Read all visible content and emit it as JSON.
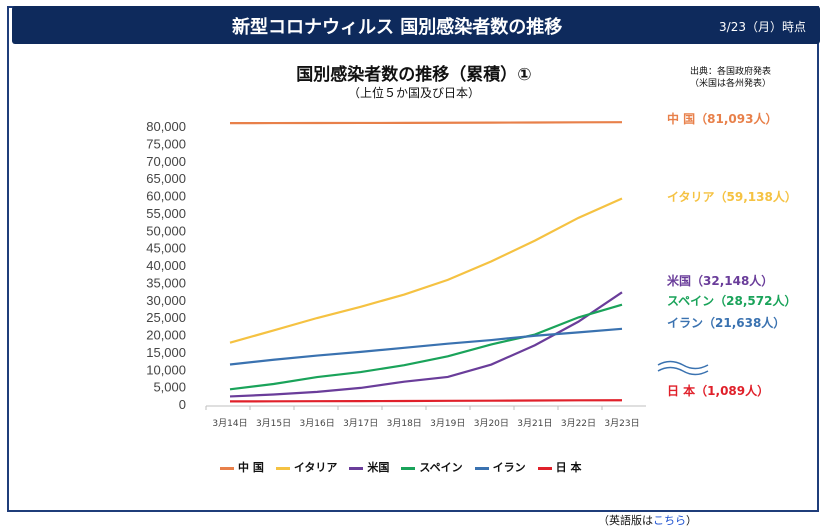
{
  "header": {
    "title": "新型コロナウィルス 国別感染者数の推移",
    "date": "3/23（月）時点"
  },
  "source_note": [
    "出典：各国政府発表",
    "（米国は各州発表）"
  ],
  "english_note": {
    "text": "（英語版は",
    "link": "こちら",
    "close": "）"
  },
  "colors": {
    "header_bg": "#0e2a5c",
    "china": "#e8804a",
    "italy": "#f5c242",
    "us": "#6a3d9a",
    "spain": "#1aa35a",
    "iran": "#3a72b0",
    "japan": "#e0202a"
  },
  "chart_data": {
    "type": "line",
    "title": "国別感染者数の推移（累積）①",
    "subtitle": "（上位５か国及び日本）",
    "x": [
      "3月14日",
      "3月15日",
      "3月16日",
      "3月17日",
      "3月18日",
      "3月19日",
      "3月20日",
      "3月21日",
      "3月22日",
      "3月23日"
    ],
    "ylim": [
      0,
      80000
    ],
    "yticks": [
      0,
      5000,
      10000,
      15000,
      20000,
      25000,
      30000,
      35000,
      40000,
      45000,
      50000,
      55000,
      60000,
      65000,
      70000,
      75000,
      80000
    ],
    "ytick_labels": [
      "0",
      "5,000",
      "10,000",
      "15,000",
      "20,000",
      "25,000",
      "30,000",
      "35,000",
      "40,000",
      "45,000",
      "50,000",
      "55,000",
      "60,000",
      "65,000",
      "70,000",
      "75,000",
      "80,000"
    ],
    "grid": false,
    "legend_position": "bottom",
    "series": [
      {
        "key": "china",
        "name": "中 国",
        "end_label": "中 国（81,093人）",
        "color": "#e8804a",
        "values": [
          80824,
          80844,
          80860,
          80881,
          80894,
          80928,
          80967,
          81008,
          81054,
          81093
        ]
      },
      {
        "key": "italy",
        "name": "イタリア",
        "end_label": "イタリア（59,138人）",
        "color": "#f5c242",
        "values": [
          17660,
          21157,
          24747,
          27980,
          31506,
          35713,
          41035,
          47021,
          53578,
          59138
        ]
      },
      {
        "key": "us",
        "name": "米国",
        "end_label": "米国（32,148人）",
        "color": "#6a3d9a",
        "values": [
          2174,
          2726,
          3499,
          4632,
          6421,
          7786,
          11355,
          16900,
          23700,
          32148
        ]
      },
      {
        "key": "spain",
        "name": "スペイン",
        "end_label": "スペイン（28,572人）",
        "color": "#1aa35a",
        "values": [
          4231,
          5753,
          7753,
          9191,
          11178,
          13716,
          17147,
          19980,
          24926,
          28572
        ]
      },
      {
        "key": "iran",
        "name": "イラン",
        "end_label": "イラン（21,638人）",
        "color": "#3a72b0",
        "values": [
          11364,
          12729,
          13938,
          14991,
          16169,
          17361,
          18407,
          19644,
          20610,
          21638
        ]
      },
      {
        "key": "japan",
        "name": "日 本",
        "end_label": "日 本（1,089人）",
        "color": "#e0202a",
        "values": [
          746,
          780,
          814,
          829,
          873,
          924,
          950,
          1007,
          1055,
          1089
        ]
      }
    ]
  }
}
